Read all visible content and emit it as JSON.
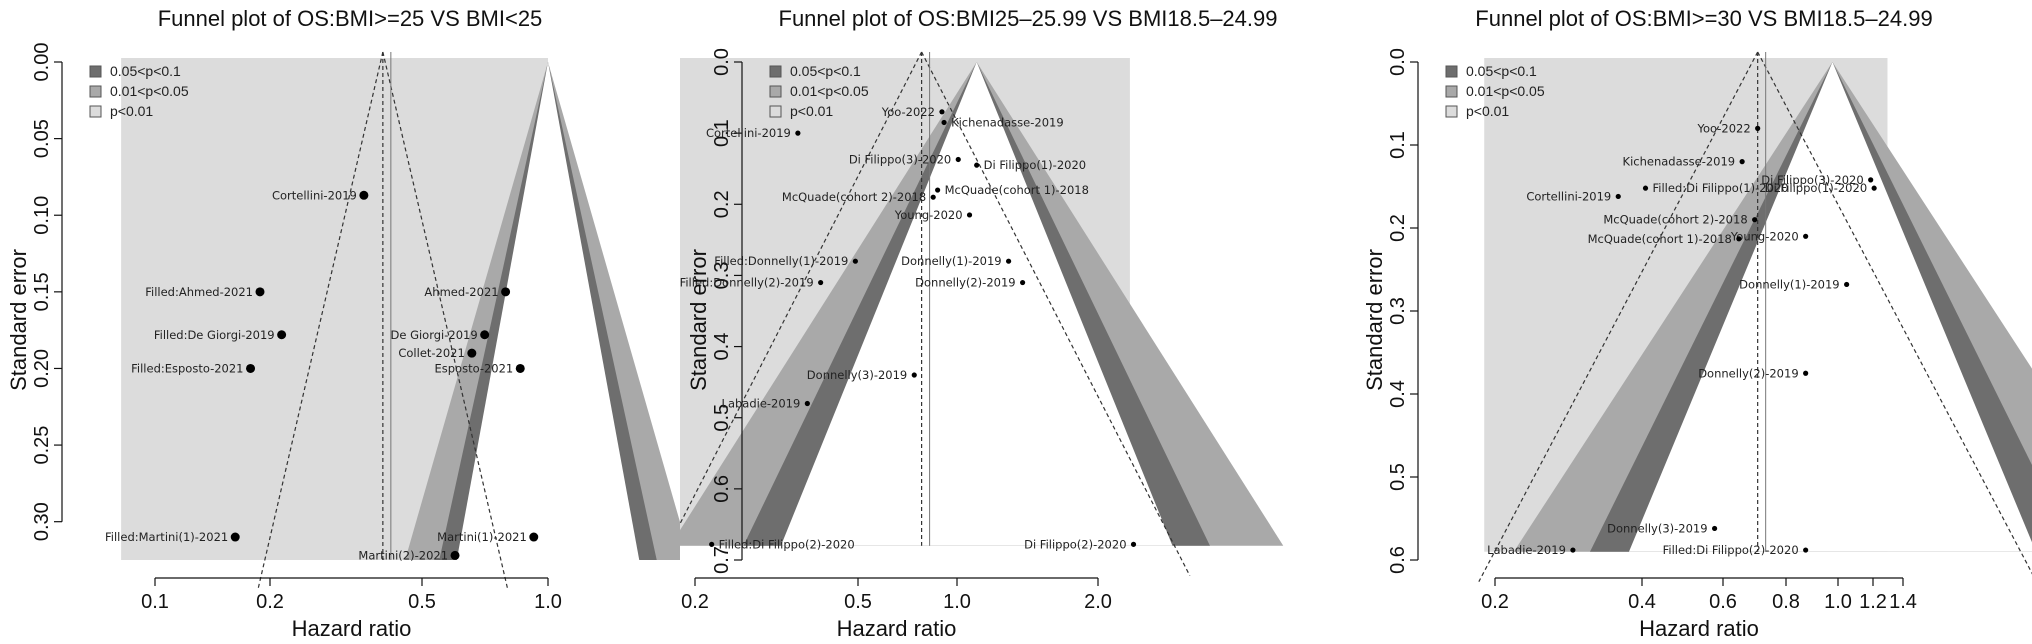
{
  "chart_data": [
    {
      "type": "scatter",
      "title": "Funnel plot of OS:BMI>=25 VS BMI<25",
      "xlabel": "Hazard ratio",
      "ylabel": "Standard error",
      "x_scale": "log",
      "xlim": [
        0.075,
        1.05
      ],
      "ylim": [
        0.325,
        0.0
      ],
      "x_ticks": [
        "0.1",
        "0.2",
        "0.5",
        "1.0"
      ],
      "y_ticks": [
        "0.00",
        "0.05",
        "0.10",
        "0.15",
        "0.20",
        "0.25",
        "0.30"
      ],
      "pooled_estimate": 0.38,
      "null_value": 1.0,
      "funnel_base_se": 0.325,
      "legend": [
        "0.05<p<0.1",
        "0.01<p<0.05",
        "p<0.01"
      ],
      "legend_position": "top-left",
      "points": [
        {
          "label": "Cortellini-2019",
          "hr": 0.34,
          "se": 0.087
        },
        {
          "label": "Filled:Ahmed-2021",
          "hr": 0.185,
          "se": 0.15
        },
        {
          "label": "Ahmed-2021",
          "hr": 0.78,
          "se": 0.15
        },
        {
          "label": "Filled:De Giorgi-2019",
          "hr": 0.21,
          "se": 0.178
        },
        {
          "label": "De Giorgi-2019",
          "hr": 0.69,
          "se": 0.178
        },
        {
          "label": "Collet-2021",
          "hr": 0.64,
          "se": 0.19
        },
        {
          "label": "Filled:Esposto-2021",
          "hr": 0.175,
          "se": 0.2
        },
        {
          "label": "Esposto-2021",
          "hr": 0.85,
          "se": 0.2
        },
        {
          "label": "Filled:Martini(1)-2021",
          "hr": 0.16,
          "se": 0.31
        },
        {
          "label": "Martini(1)-2021",
          "hr": 0.92,
          "se": 0.31
        },
        {
          "label": "Martini(2)-2021",
          "hr": 0.58,
          "se": 0.322
        }
      ]
    },
    {
      "type": "scatter",
      "title": "Funnel plot of OS:BMI25–25.99 VS BMI18.5–24.99",
      "xlabel": "Hazard ratio",
      "ylabel": "Standard error",
      "x_scale": "log",
      "xlim": [
        0.15,
        2.6
      ],
      "ylim": [
        0.7,
        0.0
      ],
      "x_ticks": [
        "0.2",
        "0.5",
        "1.0",
        "2.0"
      ],
      "y_ticks": [
        "0.0",
        "0.1",
        "0.2",
        "0.3",
        "0.4",
        "0.5",
        "0.6",
        "0.7"
      ],
      "pooled_estimate": 0.73,
      "null_value": 1.0,
      "funnel_base_se": 0.68,
      "legend": [
        "0.05<p<0.1",
        "0.01<p<0.05",
        "p<0.01"
      ],
      "legend_position": "top-left",
      "points": [
        {
          "label": "Yoo-2022",
          "hr": 0.82,
          "se": 0.07
        },
        {
          "label": "Kichenadasse-2019",
          "hr": 0.83,
          "se": 0.085
        },
        {
          "label": "Cortellini-2019",
          "hr": 0.36,
          "se": 0.1
        },
        {
          "label": "Di Filippo(3)-2020",
          "hr": 0.9,
          "se": 0.137
        },
        {
          "label": "Di Filippo(1)-2020",
          "hr": 1.0,
          "se": 0.145
        },
        {
          "label": "McQuade(cohort 1)-2018",
          "hr": 0.8,
          "se": 0.18
        },
        {
          "label": "McQuade(cohort 2)-2018",
          "hr": 0.78,
          "se": 0.19
        },
        {
          "label": "Young-2020",
          "hr": 0.96,
          "se": 0.215
        },
        {
          "label": "Filled:Donnelly(1)-2019",
          "hr": 0.5,
          "se": 0.28
        },
        {
          "label": "Donnelly(1)-2019",
          "hr": 1.2,
          "se": 0.28
        },
        {
          "label": "Filled:Donnelly(2)-2019",
          "hr": 0.41,
          "se": 0.31
        },
        {
          "label": "Donnelly(2)-2019",
          "hr": 1.3,
          "se": 0.31
        },
        {
          "label": "Donnelly(3)-2019",
          "hr": 0.7,
          "se": 0.44
        },
        {
          "label": "Labadie-2019",
          "hr": 0.38,
          "se": 0.48
        },
        {
          "label": "Filled:Di Filippo(2)-2020",
          "hr": 0.22,
          "se": 0.678
        },
        {
          "label": "Di Filippo(2)-2020",
          "hr": 2.45,
          "se": 0.678
        }
      ]
    },
    {
      "type": "scatter",
      "title": "Funnel plot of OS:BMI>=30 VS BMI18.5–24.99",
      "xlabel": "Hazard ratio",
      "ylabel": "Standard error",
      "x_scale": "log",
      "xlim": [
        0.17,
        1.45
      ],
      "ylim": [
        0.6,
        0.0
      ],
      "x_ticks": [
        "0.2",
        "0.4",
        "0.6",
        "0.8",
        "1.0",
        "1.2",
        "1.4"
      ],
      "y_ticks": [
        "0.0",
        "0.1",
        "0.2",
        "0.3",
        "0.4",
        "0.5",
        "0.6"
      ],
      "pooled_estimate": 0.7,
      "null_value": 1.0,
      "funnel_base_se": 0.59,
      "legend": [
        "0.05<p<0.1",
        "0.01<p<0.05",
        "p<0.01"
      ],
      "legend_position": "top-left",
      "points": [
        {
          "label": "Yoo-2022",
          "hr": 0.7,
          "se": 0.08
        },
        {
          "label": "Kichenadasse-2019",
          "hr": 0.65,
          "se": 0.12
        },
        {
          "label": "Di Filippo(3)-2020",
          "hr": 1.2,
          "se": 0.142
        },
        {
          "label": "Filled:Di Filippo(1)-2020",
          "hr": 0.41,
          "se": 0.152
        },
        {
          "label": "Di Filippo(1)-2020",
          "hr": 1.22,
          "se": 0.152
        },
        {
          "label": "Cortellini-2019",
          "hr": 0.36,
          "se": 0.162
        },
        {
          "label": "McQuade(cohort 2)-2018",
          "hr": 0.69,
          "se": 0.19
        },
        {
          "label": "Young-2020",
          "hr": 0.88,
          "se": 0.21
        },
        {
          "label": "McQuade(cohort 1)-2018",
          "hr": 0.64,
          "se": 0.213
        },
        {
          "label": "Donnelly(1)-2019",
          "hr": 1.07,
          "se": 0.268
        },
        {
          "label": "Donnelly(2)-2019",
          "hr": 0.88,
          "se": 0.375
        },
        {
          "label": "Donnelly(3)-2019",
          "hr": 0.57,
          "se": 0.562
        },
        {
          "label": "Labadie-2019",
          "hr": 0.29,
          "se": 0.588
        },
        {
          "label": "Filled:Di Filippo(2)-2020",
          "hr": 0.88,
          "se": 0.588
        }
      ]
    }
  ]
}
